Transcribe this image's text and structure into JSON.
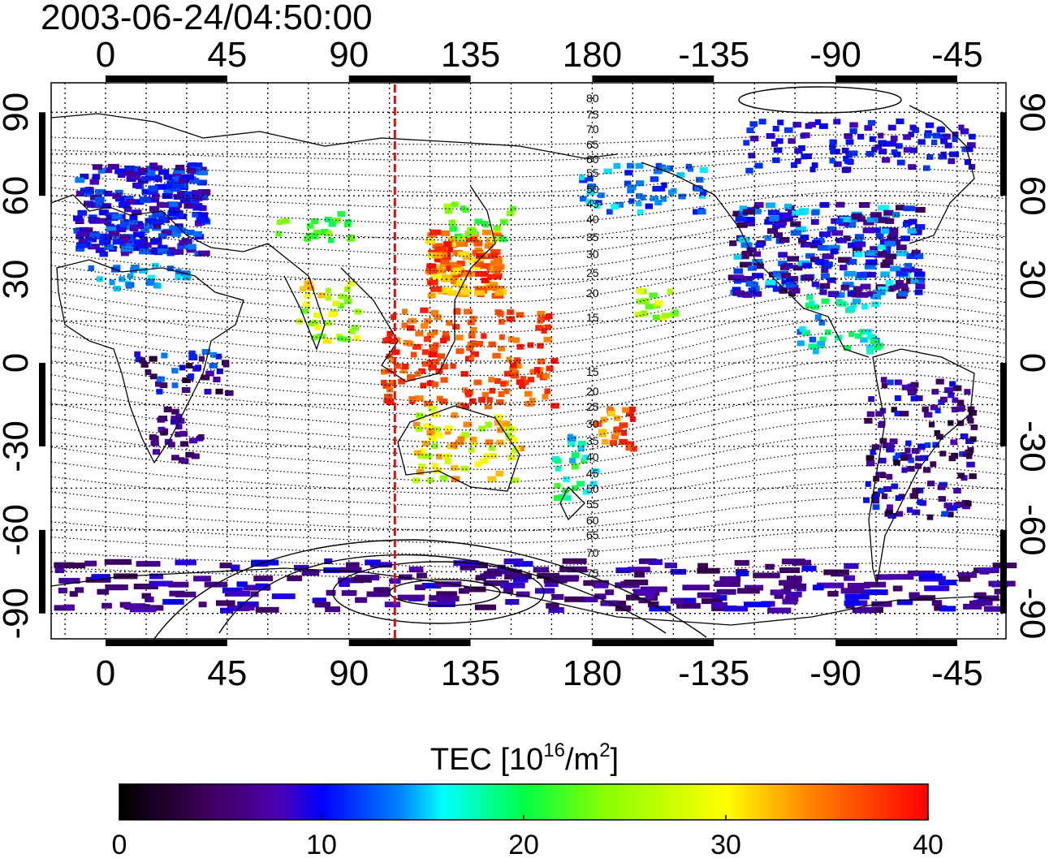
{
  "title": "2003-06-24/04:50:00",
  "map": {
    "lon_ticks": [
      "0",
      "45",
      "90",
      "135",
      "180",
      "-135",
      "-90",
      "-45"
    ],
    "lat_ticks": [
      "90",
      "60",
      "30",
      "0",
      "-30",
      "-60",
      "-90"
    ],
    "marker_longitude_deg": 107,
    "marker_color": "#ff0000"
  },
  "contours": {
    "north": [
      "80",
      "75",
      "70",
      "65",
      "60",
      "55",
      "50",
      "45",
      "40",
      "35",
      "30",
      "25",
      "20",
      "15"
    ],
    "south": [
      "15",
      "20",
      "25",
      "30",
      "35",
      "40",
      "45",
      "50",
      "55",
      "60",
      "65",
      "70",
      "75"
    ]
  },
  "colorbar": {
    "title_main": "TEC  [10",
    "title_exp1": "16",
    "title_mid": "/m",
    "title_exp2": "2",
    "title_end": "]",
    "min": 0,
    "max": 40,
    "ticks": [
      "0",
      "10",
      "20",
      "30",
      "40"
    ]
  },
  "tec_clusters": [
    {
      "region": "europe",
      "lon": [
        -12,
        35
      ],
      "lat": [
        40,
        72
      ],
      "tec": [
        6,
        14
      ]
    },
    {
      "region": "north-africa",
      "lon": [
        -10,
        30
      ],
      "lat": [
        27,
        36
      ],
      "tec": [
        12,
        16
      ]
    },
    {
      "region": "central-asia",
      "lon": [
        60,
        90
      ],
      "lat": [
        45,
        55
      ],
      "tec": [
        19,
        24
      ]
    },
    {
      "region": "india",
      "lon": [
        70,
        92
      ],
      "lat": [
        8,
        30
      ],
      "tec": [
        22,
        33
      ]
    },
    {
      "region": "east-asia",
      "lon": [
        118,
        145
      ],
      "lat": [
        25,
        48
      ],
      "tec": [
        30,
        40
      ]
    },
    {
      "region": "siberia",
      "lon": [
        125,
        150
      ],
      "lat": [
        45,
        58
      ],
      "tec": [
        20,
        26
      ]
    },
    {
      "region": "se-asia-pacific",
      "lon": [
        100,
        165
      ],
      "lat": [
        -15,
        20
      ],
      "tec": [
        34,
        40
      ]
    },
    {
      "region": "australia",
      "lon": [
        113,
        152
      ],
      "lat": [
        -42,
        -15
      ],
      "tec": [
        24,
        35
      ]
    },
    {
      "region": "new-zealand",
      "lon": [
        165,
        180
      ],
      "lat": [
        -48,
        -25
      ],
      "tec": [
        14,
        22
      ]
    },
    {
      "region": "central-pacific",
      "lon": [
        180,
        200
      ],
      "lat": [
        -33,
        -15
      ],
      "tec": [
        30,
        40
      ]
    },
    {
      "region": "hawaii",
      "lon": [
        195,
        210
      ],
      "lat": [
        17,
        28
      ],
      "tec": [
        22,
        30
      ]
    },
    {
      "region": "alaska-siberia",
      "lon": [
        175,
        220
      ],
      "lat": [
        55,
        72
      ],
      "tec": [
        10,
        16
      ]
    },
    {
      "region": "canada-arctic",
      "lon": [
        235,
        320
      ],
      "lat": [
        70,
        88
      ],
      "tec": [
        8,
        12
      ]
    },
    {
      "region": "north-america",
      "lon": [
        230,
        300
      ],
      "lat": [
        25,
        58
      ],
      "tec": [
        4,
        16
      ]
    },
    {
      "region": "central-america",
      "lon": [
        255,
        285
      ],
      "lat": [
        5,
        25
      ],
      "tec": [
        12,
        20
      ]
    },
    {
      "region": "south-america",
      "lon": [
        280,
        320
      ],
      "lat": [
        -55,
        -5
      ],
      "tec": [
        2,
        12
      ]
    },
    {
      "region": "southern-africa",
      "lon": [
        15,
        35
      ],
      "lat": [
        -35,
        -15
      ],
      "tec": [
        4,
        10
      ]
    },
    {
      "region": "east-africa",
      "lon": [
        10,
        45
      ],
      "lat": [
        -10,
        5
      ],
      "tec": [
        2,
        14
      ]
    },
    {
      "region": "antarctica",
      "lon": [
        0,
        360
      ],
      "lat": [
        -88,
        -70
      ],
      "tec": [
        4,
        10
      ]
    }
  ]
}
